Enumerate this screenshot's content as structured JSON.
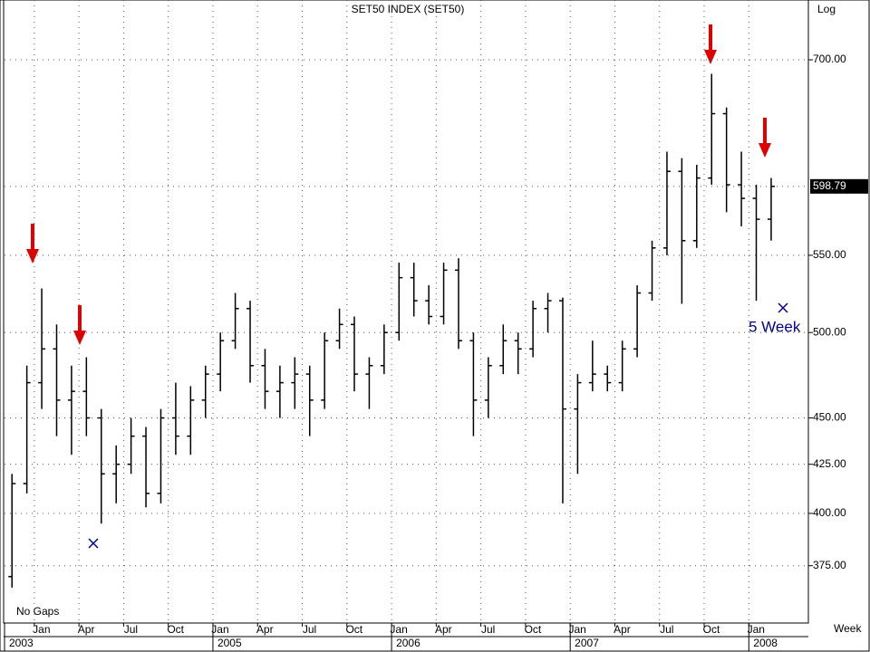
{
  "chart_data": {
    "type": "ohlc",
    "title": "SET50  INDEX (SET50)",
    "scale_label": "Log",
    "period_label": "Week",
    "gap_note": "No  Gaps",
    "log_scale": true,
    "grid": true,
    "color": "#000000",
    "x": [
      "2003-11",
      "2003-12",
      "2004-01",
      "2004-02",
      "2004-03",
      "2004-04",
      "2004-05",
      "2004-06",
      "2004-07",
      "2004-08",
      "2004-09",
      "2004-10",
      "2004-11",
      "2004-12",
      "2005-01",
      "2005-02",
      "2005-03",
      "2005-04",
      "2005-05",
      "2005-06",
      "2005-07",
      "2005-08",
      "2005-09",
      "2005-10",
      "2005-11",
      "2005-12",
      "2006-01",
      "2006-02",
      "2006-03",
      "2006-04",
      "2006-05",
      "2006-06",
      "2006-07",
      "2006-08",
      "2006-09",
      "2006-10",
      "2006-11",
      "2006-12",
      "2007-01",
      "2007-02",
      "2007-03",
      "2007-04",
      "2007-05",
      "2007-06",
      "2007-07",
      "2007-08",
      "2007-09",
      "2007-10",
      "2007-11",
      "2007-12",
      "2008-01",
      "2008-02"
    ],
    "open": [
      370,
      415,
      470,
      490,
      460,
      465,
      450,
      420,
      425,
      440,
      410,
      450,
      440,
      460,
      475,
      495,
      515,
      480,
      465,
      470,
      475,
      460,
      495,
      505,
      475,
      480,
      500,
      535,
      520,
      510,
      540,
      495,
      460,
      480,
      495,
      490,
      515,
      520,
      455,
      470,
      475,
      470,
      490,
      525,
      555,
      610,
      560,
      605,
      655,
      600,
      590,
      575
    ],
    "high": [
      420,
      480,
      528,
      505,
      480,
      485,
      455,
      435,
      450,
      445,
      455,
      470,
      468,
      480,
      500,
      525,
      520,
      490,
      480,
      485,
      480,
      500,
      515,
      510,
      485,
      505,
      545,
      545,
      530,
      545,
      548,
      500,
      485,
      505,
      500,
      520,
      525,
      522,
      475,
      495,
      480,
      495,
      530,
      560,
      625,
      620,
      615,
      688,
      660,
      625,
      600,
      605
    ],
    "low": [
      365,
      410,
      455,
      440,
      430,
      440,
      395,
      405,
      420,
      403,
      405,
      430,
      430,
      450,
      465,
      490,
      470,
      455,
      450,
      455,
      440,
      455,
      490,
      465,
      455,
      475,
      495,
      510,
      505,
      505,
      490,
      440,
      450,
      475,
      475,
      485,
      500,
      405,
      420,
      465,
      465,
      465,
      485,
      520,
      550,
      518,
      555,
      600,
      580,
      570,
      520,
      560
    ],
    "close": [
      415,
      470,
      490,
      460,
      465,
      450,
      420,
      425,
      440,
      410,
      450,
      440,
      460,
      475,
      495,
      515,
      480,
      465,
      470,
      475,
      460,
      495,
      505,
      475,
      480,
      500,
      535,
      520,
      510,
      540,
      495,
      460,
      480,
      495,
      490,
      515,
      520,
      455,
      470,
      475,
      470,
      490,
      525,
      555,
      610,
      560,
      605,
      655,
      600,
      590,
      575,
      598.79
    ],
    "xlim": [
      "2003-11",
      "2008-05"
    ],
    "ylim": [
      349.4,
      753.6
    ],
    "yticks": [
      {
        "value": 375,
        "label": "375.00"
      },
      {
        "value": 400,
        "label": "400.00"
      },
      {
        "value": 425,
        "label": "425.00"
      },
      {
        "value": 450,
        "label": "450.00"
      },
      {
        "value": 500,
        "label": "500.00"
      },
      {
        "value": 550,
        "label": "550.00"
      },
      {
        "value": 700,
        "label": "700.00"
      }
    ],
    "last_value": 598.79,
    "xticks": [
      {
        "value": "2004-01",
        "label": "Jan"
      },
      {
        "value": "2004-04",
        "label": "Apr"
      },
      {
        "value": "2004-07",
        "label": "Jul"
      },
      {
        "value": "2004-10",
        "label": "Oct"
      },
      {
        "value": "2005-01",
        "label": "Jan"
      },
      {
        "value": "2005-04",
        "label": "Apr"
      },
      {
        "value": "2005-07",
        "label": "Jul"
      },
      {
        "value": "2005-10",
        "label": "Oct"
      },
      {
        "value": "2006-01",
        "label": "Jan"
      },
      {
        "value": "2006-04",
        "label": "Apr"
      },
      {
        "value": "2006-07",
        "label": "Jul"
      },
      {
        "value": "2006-10",
        "label": "Oct"
      },
      {
        "value": "2007-01",
        "label": "Jan"
      },
      {
        "value": "2007-04",
        "label": "Apr"
      },
      {
        "value": "2007-07",
        "label": "Jul"
      },
      {
        "value": "2007-10",
        "label": "Oct"
      },
      {
        "value": "2008-01",
        "label": "Jan"
      }
    ],
    "year_labels": [
      {
        "value": "2003-11",
        "label": "2003"
      },
      {
        "value": "2005-01",
        "label": "2005"
      },
      {
        "value": "2006-01",
        "label": "2006"
      },
      {
        "value": "2007-01",
        "label": "2007"
      },
      {
        "value": "2008-01",
        "label": "2008"
      }
    ],
    "annotation": "5 Week"
  }
}
